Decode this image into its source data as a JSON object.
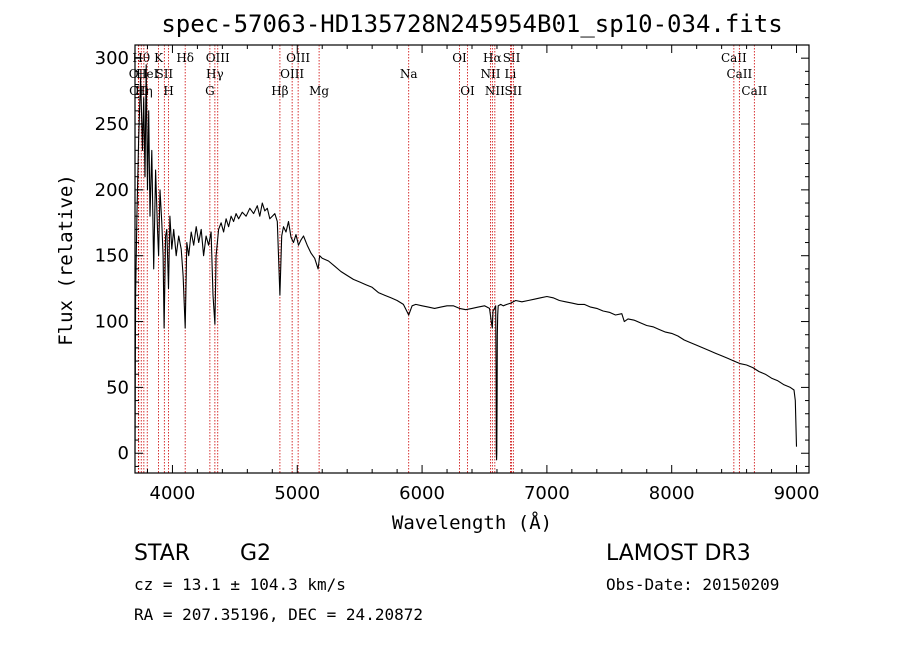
{
  "chart_data": {
    "type": "line",
    "title": "spec-57063-HD135728N245954B01_sp10-034.fits",
    "xlabel": "Wavelength (Å)",
    "ylabel": "Flux (relative)",
    "xlim": [
      3700,
      9100
    ],
    "ylim": [
      -15,
      310
    ],
    "xticks": [
      4000,
      5000,
      6000,
      7000,
      8000,
      9000
    ],
    "yticks": [
      0,
      50,
      100,
      150,
      200,
      250,
      300
    ],
    "xtick_labels": [
      "4000",
      "5000",
      "6000",
      "7000",
      "8000",
      "9000"
    ],
    "ytick_labels": [
      "0",
      "50",
      "100",
      "150",
      "200",
      "250",
      "300"
    ],
    "series": [
      {
        "name": "spectrum",
        "x": [
          3700,
          3705,
          3715,
          3730,
          3745,
          3760,
          3770,
          3780,
          3790,
          3800,
          3810,
          3820,
          3835,
          3850,
          3865,
          3880,
          3889,
          3900,
          3915,
          3925,
          3933,
          3945,
          3955,
          3968,
          3980,
          3995,
          4010,
          4030,
          4050,
          4070,
          4085,
          4102,
          4115,
          4130,
          4150,
          4170,
          4190,
          4210,
          4230,
          4250,
          4270,
          4290,
          4310,
          4325,
          4340,
          4350,
          4370,
          4390,
          4410,
          4430,
          4450,
          4470,
          4490,
          4510,
          4530,
          4560,
          4590,
          4620,
          4650,
          4680,
          4700,
          4720,
          4740,
          4760,
          4780,
          4800,
          4820,
          4840,
          4861,
          4875,
          4890,
          4910,
          4930,
          4950,
          4970,
          4990,
          5010,
          5030,
          5050,
          5080,
          5110,
          5140,
          5167,
          5180,
          5200,
          5250,
          5300,
          5350,
          5400,
          5450,
          5500,
          5550,
          5600,
          5650,
          5700,
          5750,
          5800,
          5850,
          5893,
          5920,
          5950,
          6000,
          6050,
          6100,
          6150,
          6200,
          6250,
          6300,
          6350,
          6400,
          6450,
          6500,
          6540,
          6555,
          6563,
          6568,
          6580,
          6590,
          6593,
          6595,
          6597,
          6599,
          6601,
          6603,
          6606,
          6610,
          6630,
          6650,
          6680,
          6710,
          6750,
          6800,
          6850,
          6900,
          6950,
          7000,
          7050,
          7100,
          7150,
          7200,
          7250,
          7300,
          7350,
          7400,
          7450,
          7500,
          7550,
          7600,
          7620,
          7650,
          7700,
          7750,
          7800,
          7850,
          7900,
          7950,
          8000,
          8050,
          8100,
          8150,
          8200,
          8250,
          8300,
          8350,
          8400,
          8450,
          8500,
          8550,
          8600,
          8650,
          8700,
          8750,
          8800,
          8850,
          8900,
          8950,
          8980,
          8990,
          9000
        ],
        "y": [
          0,
          120,
          180,
          240,
          285,
          230,
          270,
          210,
          295,
          200,
          260,
          180,
          230,
          140,
          215,
          170,
          150,
          200,
          175,
          150,
          95,
          165,
          170,
          125,
          180,
          155,
          170,
          150,
          165,
          155,
          135,
          95,
          160,
          150,
          168,
          158,
          172,
          160,
          170,
          150,
          165,
          158,
          168,
          120,
          98,
          150,
          170,
          175,
          168,
          178,
          172,
          180,
          176,
          182,
          178,
          183,
          180,
          186,
          182,
          188,
          180,
          190,
          184,
          186,
          178,
          180,
          182,
          176,
          120,
          165,
          172,
          168,
          176,
          164,
          160,
          166,
          158,
          162,
          165,
          158,
          152,
          148,
          140,
          150,
          148,
          146,
          142,
          138,
          135,
          132,
          130,
          128,
          126,
          122,
          120,
          118,
          116,
          113,
          105,
          112,
          113,
          112,
          111,
          110,
          111,
          112,
          112,
          110,
          109,
          110,
          111,
          112,
          110,
          100,
          95,
          108,
          110,
          112,
          60,
          0,
          -5,
          0,
          40,
          90,
          105,
          112,
          113,
          112,
          113,
          114,
          116,
          115,
          116,
          117,
          118,
          119,
          118,
          116,
          115,
          114,
          113,
          113,
          111,
          110,
          108,
          107,
          105,
          106,
          100,
          102,
          101,
          99,
          97,
          96,
          94,
          92,
          91,
          89,
          86,
          84,
          82,
          80,
          78,
          76,
          74,
          72,
          70,
          68,
          67,
          65,
          62,
          60,
          57,
          55,
          52,
          50,
          48,
          40,
          5
        ]
      }
    ],
    "line_markers": [
      {
        "wavelength": 3727,
        "label": "OII",
        "row": 2
      },
      {
        "wavelength": 3730,
        "label": "OII",
        "row": 3
      },
      {
        "wavelength": 3750,
        "label": "Hθ",
        "row": 1
      },
      {
        "wavelength": 3771,
        "label": "Hη",
        "row": 3
      },
      {
        "wavelength": 3798,
        "label": "HeI",
        "row": 2
      },
      {
        "wavelength": 3889,
        "label": "K",
        "row": 1
      },
      {
        "wavelength": 3935,
        "label": "SII",
        "row": 2
      },
      {
        "wavelength": 3969,
        "label": "H",
        "row": 3
      },
      {
        "wavelength": 4102,
        "label": "Hδ",
        "row": 1
      },
      {
        "wavelength": 4300,
        "label": "G",
        "row": 3
      },
      {
        "wavelength": 4340,
        "label": "Hγ",
        "row": 2
      },
      {
        "wavelength": 4363,
        "label": "OIII",
        "row": 1
      },
      {
        "wavelength": 4861,
        "label": "Hβ",
        "row": 3
      },
      {
        "wavelength": 4959,
        "label": "OIII",
        "row": 2
      },
      {
        "wavelength": 5007,
        "label": "OIII",
        "row": 1
      },
      {
        "wavelength": 5175,
        "label": "Mg",
        "row": 3
      },
      {
        "wavelength": 5893,
        "label": "Na",
        "row": 2
      },
      {
        "wavelength": 6300,
        "label": "OI",
        "row": 1
      },
      {
        "wavelength": 6364,
        "label": "OI",
        "row": 3
      },
      {
        "wavelength": 6548,
        "label": "NII",
        "row": 2
      },
      {
        "wavelength": 6563,
        "label": "Hα",
        "row": 1
      },
      {
        "wavelength": 6583,
        "label": "NII",
        "row": 3
      },
      {
        "wavelength": 6708,
        "label": "Li",
        "row": 2
      },
      {
        "wavelength": 6717,
        "label": "SII",
        "row": 1
      },
      {
        "wavelength": 6731,
        "label": "SII",
        "row": 3
      },
      {
        "wavelength": 8498,
        "label": "CaII",
        "row": 1
      },
      {
        "wavelength": 8542,
        "label": "CaII",
        "row": 2
      },
      {
        "wavelength": 8662,
        "label": "CaII",
        "row": 3
      }
    ],
    "colors": {
      "spectrum": "#000000",
      "markers": "#cc0000",
      "axes": "#000000"
    }
  },
  "info": {
    "object_class": "STAR",
    "subclass": "G2",
    "survey": "LAMOST DR3",
    "cz": "cz = 13.1 ± 104.3 km/s",
    "obs_date": "Obs-Date: 20150209",
    "coords": "RA = 207.35196, DEC =  24.20872"
  }
}
